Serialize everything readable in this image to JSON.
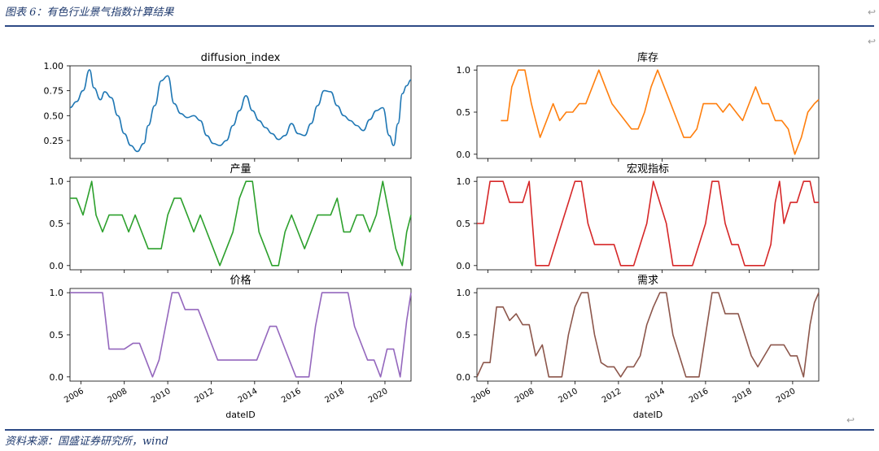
{
  "header": {
    "caption": "图表 6：有色行业景气指数计算结果"
  },
  "footer": {
    "source": "资料来源：国盛证券研究所，wind"
  },
  "paragraph_mark": "↩",
  "xaxis": {
    "label": "dateID",
    "ticks": [
      "2006",
      "2008",
      "2010",
      "2012",
      "2014",
      "2016",
      "2018",
      "2020"
    ]
  },
  "chart_data": [
    {
      "type": "line",
      "title": "diffusion_index",
      "color": "#1f77b4",
      "yticks": [
        "0.25",
        "0.50",
        "0.75",
        "1.00"
      ],
      "ylim": [
        0.07,
        1.0
      ],
      "x": [
        2005.5,
        2005.8,
        2006.1,
        2006.4,
        2006.6,
        2006.9,
        2007.1,
        2007.4,
        2007.7,
        2008.0,
        2008.3,
        2008.6,
        2008.9,
        2009.1,
        2009.4,
        2009.7,
        2010.0,
        2010.3,
        2010.6,
        2010.9,
        2011.2,
        2011.5,
        2011.8,
        2012.1,
        2012.4,
        2012.7,
        2013.0,
        2013.3,
        2013.6,
        2013.9,
        2014.2,
        2014.5,
        2014.8,
        2015.1,
        2015.4,
        2015.7,
        2016.0,
        2016.3,
        2016.6,
        2016.9,
        2017.2,
        2017.5,
        2017.8,
        2018.1,
        2018.4,
        2018.7,
        2019.0,
        2019.3,
        2019.6,
        2019.9,
        2020.2,
        2020.4,
        2020.6,
        2020.8,
        2021.0,
        2021.2
      ],
      "y": [
        0.58,
        0.64,
        0.75,
        0.96,
        0.78,
        0.66,
        0.74,
        0.68,
        0.5,
        0.32,
        0.2,
        0.14,
        0.22,
        0.4,
        0.6,
        0.85,
        0.9,
        0.62,
        0.52,
        0.48,
        0.5,
        0.45,
        0.3,
        0.22,
        0.2,
        0.25,
        0.4,
        0.55,
        0.7,
        0.55,
        0.45,
        0.38,
        0.32,
        0.26,
        0.3,
        0.42,
        0.32,
        0.3,
        0.42,
        0.6,
        0.75,
        0.74,
        0.6,
        0.5,
        0.45,
        0.4,
        0.35,
        0.46,
        0.55,
        0.58,
        0.3,
        0.2,
        0.42,
        0.72,
        0.8,
        0.86
      ]
    },
    {
      "type": "line",
      "title": "库存",
      "color": "#ff7f0e",
      "yticks": [
        "0.0",
        "0.5",
        "1.0"
      ],
      "ylim": [
        -0.05,
        1.05
      ],
      "x": [
        2006.6,
        2006.9,
        2007.1,
        2007.4,
        2007.7,
        2008.0,
        2008.2,
        2008.4,
        2008.7,
        2009.0,
        2009.3,
        2009.6,
        2009.9,
        2010.2,
        2010.5,
        2010.8,
        2011.1,
        2011.4,
        2011.7,
        2012.0,
        2012.3,
        2012.6,
        2012.9,
        2013.2,
        2013.5,
        2013.8,
        2014.1,
        2014.4,
        2014.7,
        2015.0,
        2015.3,
        2015.6,
        2015.9,
        2016.2,
        2016.5,
        2016.8,
        2017.1,
        2017.4,
        2017.7,
        2018.0,
        2018.3,
        2018.6,
        2018.9,
        2019.2,
        2019.5,
        2019.8,
        2020.1,
        2020.4,
        2020.7,
        2021.0,
        2021.2
      ],
      "y": [
        0.4,
        0.4,
        0.8,
        1.0,
        1.0,
        0.6,
        0.4,
        0.2,
        0.4,
        0.6,
        0.4,
        0.5,
        0.5,
        0.6,
        0.6,
        0.8,
        1.0,
        0.8,
        0.6,
        0.5,
        0.4,
        0.3,
        0.3,
        0.5,
        0.8,
        1.0,
        0.8,
        0.6,
        0.4,
        0.2,
        0.2,
        0.3,
        0.6,
        0.6,
        0.6,
        0.5,
        0.6,
        0.5,
        0.4,
        0.6,
        0.8,
        0.6,
        0.6,
        0.4,
        0.4,
        0.3,
        0.0,
        0.2,
        0.5,
        0.6,
        0.65
      ]
    },
    {
      "type": "line",
      "title": "产量",
      "color": "#2ca02c",
      "yticks": [
        "0.0",
        "0.5",
        "1.0"
      ],
      "ylim": [
        -0.05,
        1.05
      ],
      "x": [
        2005.5,
        2005.8,
        2006.1,
        2006.3,
        2006.5,
        2006.7,
        2007.0,
        2007.3,
        2007.6,
        2007.9,
        2008.2,
        2008.5,
        2008.8,
        2009.1,
        2009.4,
        2009.7,
        2010.0,
        2010.3,
        2010.6,
        2010.9,
        2011.2,
        2011.5,
        2011.8,
        2012.1,
        2012.4,
        2012.7,
        2013.0,
        2013.3,
        2013.6,
        2013.9,
        2014.2,
        2014.5,
        2014.8,
        2015.1,
        2015.4,
        2015.7,
        2016.0,
        2016.3,
        2016.6,
        2016.9,
        2017.2,
        2017.5,
        2017.8,
        2018.1,
        2018.4,
        2018.7,
        2019.0,
        2019.3,
        2019.6,
        2019.9,
        2020.2,
        2020.5,
        2020.8,
        2021.0,
        2021.2
      ],
      "y": [
        0.8,
        0.8,
        0.6,
        0.8,
        1.0,
        0.6,
        0.4,
        0.6,
        0.6,
        0.6,
        0.4,
        0.6,
        0.4,
        0.2,
        0.2,
        0.2,
        0.6,
        0.8,
        0.8,
        0.6,
        0.4,
        0.6,
        0.4,
        0.2,
        0.0,
        0.2,
        0.4,
        0.8,
        1.0,
        1.0,
        0.4,
        0.2,
        0.0,
        0.0,
        0.4,
        0.6,
        0.4,
        0.2,
        0.4,
        0.6,
        0.6,
        0.6,
        0.8,
        0.4,
        0.4,
        0.6,
        0.6,
        0.4,
        0.6,
        1.0,
        0.6,
        0.2,
        0.0,
        0.4,
        0.6
      ]
    },
    {
      "type": "line",
      "title": "宏观指标",
      "color": "#d62728",
      "yticks": [
        "0.0",
        "0.5",
        "1.0"
      ],
      "ylim": [
        -0.05,
        1.05
      ],
      "x": [
        2005.5,
        2005.8,
        2006.1,
        2006.4,
        2006.7,
        2007.0,
        2007.3,
        2007.6,
        2007.9,
        2008.2,
        2008.5,
        2008.8,
        2009.1,
        2009.4,
        2009.7,
        2010.0,
        2010.3,
        2010.6,
        2010.9,
        2011.2,
        2011.5,
        2011.8,
        2012.1,
        2012.4,
        2012.7,
        2013.0,
        2013.3,
        2013.6,
        2013.9,
        2014.2,
        2014.5,
        2014.8,
        2015.1,
        2015.4,
        2015.7,
        2016.0,
        2016.3,
        2016.6,
        2016.9,
        2017.2,
        2017.5,
        2017.8,
        2018.1,
        2018.4,
        2018.7,
        2019.0,
        2019.2,
        2019.4,
        2019.6,
        2019.9,
        2020.2,
        2020.5,
        2020.8,
        2021.0,
        2021.2
      ],
      "y": [
        0.5,
        0.5,
        1.0,
        1.0,
        1.0,
        0.75,
        0.75,
        0.75,
        1.0,
        0.0,
        0.0,
        0.0,
        0.25,
        0.5,
        0.75,
        1.0,
        1.0,
        0.5,
        0.25,
        0.25,
        0.25,
        0.25,
        0.0,
        0.0,
        0.0,
        0.25,
        0.5,
        1.0,
        0.75,
        0.5,
        0.0,
        0.0,
        0.0,
        0.0,
        0.25,
        0.5,
        1.0,
        1.0,
        0.5,
        0.25,
        0.25,
        0.0,
        0.0,
        0.0,
        0.0,
        0.25,
        0.75,
        1.0,
        0.5,
        0.75,
        0.75,
        1.0,
        1.0,
        0.75,
        0.75
      ]
    },
    {
      "type": "line",
      "title": "价格",
      "color": "#9467bd",
      "yticks": [
        "0.0",
        "0.5",
        "1.0"
      ],
      "ylim": [
        -0.05,
        1.05
      ],
      "x": [
        2005.5,
        2006.0,
        2006.5,
        2007.0,
        2007.3,
        2007.6,
        2008.0,
        2008.4,
        2008.7,
        2009.0,
        2009.3,
        2009.6,
        2009.9,
        2010.2,
        2010.5,
        2010.8,
        2011.1,
        2011.4,
        2011.7,
        2012.0,
        2012.3,
        2012.6,
        2012.9,
        2013.2,
        2013.5,
        2013.8,
        2014.1,
        2014.4,
        2014.7,
        2015.0,
        2015.3,
        2015.6,
        2015.9,
        2016.2,
        2016.5,
        2016.8,
        2017.1,
        2017.4,
        2017.7,
        2018.0,
        2018.3,
        2018.6,
        2018.9,
        2019.2,
        2019.5,
        2019.8,
        2020.1,
        2020.4,
        2020.7,
        2021.0,
        2021.2
      ],
      "y": [
        1.0,
        1.0,
        1.0,
        1.0,
        0.33,
        0.33,
        0.33,
        0.4,
        0.4,
        0.2,
        0.0,
        0.2,
        0.6,
        1.0,
        1.0,
        0.8,
        0.8,
        0.8,
        0.6,
        0.4,
        0.2,
        0.2,
        0.2,
        0.2,
        0.2,
        0.2,
        0.2,
        0.4,
        0.6,
        0.6,
        0.4,
        0.2,
        0.0,
        0.0,
        0.0,
        0.6,
        1.0,
        1.0,
        1.0,
        1.0,
        1.0,
        0.6,
        0.4,
        0.2,
        0.2,
        0.0,
        0.33,
        0.33,
        0.0,
        0.67,
        1.0
      ]
    },
    {
      "type": "line",
      "title": "需求",
      "color": "#8c564b",
      "yticks": [
        "0.0",
        "0.5",
        "1.0"
      ],
      "ylim": [
        -0.05,
        1.05
      ],
      "x": [
        2005.5,
        2005.8,
        2006.1,
        2006.4,
        2006.7,
        2007.0,
        2007.3,
        2007.6,
        2007.9,
        2008.2,
        2008.5,
        2008.8,
        2009.1,
        2009.4,
        2009.7,
        2010.0,
        2010.3,
        2010.6,
        2010.9,
        2011.2,
        2011.5,
        2011.8,
        2012.1,
        2012.4,
        2012.7,
        2013.0,
        2013.3,
        2013.6,
        2013.9,
        2014.2,
        2014.5,
        2014.8,
        2015.1,
        2015.4,
        2015.7,
        2016.0,
        2016.3,
        2016.6,
        2016.9,
        2017.2,
        2017.5,
        2017.8,
        2018.1,
        2018.4,
        2018.7,
        2019.0,
        2019.3,
        2019.6,
        2019.9,
        2020.2,
        2020.5,
        2020.8,
        2021.0,
        2021.2
      ],
      "y": [
        0.0,
        0.17,
        0.17,
        0.83,
        0.83,
        0.67,
        0.75,
        0.62,
        0.62,
        0.25,
        0.38,
        0.0,
        0.0,
        0.0,
        0.5,
        0.83,
        1.0,
        1.0,
        0.5,
        0.17,
        0.12,
        0.12,
        0.0,
        0.12,
        0.12,
        0.25,
        0.62,
        0.83,
        1.0,
        1.0,
        0.5,
        0.25,
        0.0,
        0.0,
        0.0,
        0.5,
        1.0,
        1.0,
        0.75,
        0.75,
        0.75,
        0.5,
        0.25,
        0.12,
        0.25,
        0.38,
        0.38,
        0.38,
        0.25,
        0.25,
        0.0,
        0.62,
        0.88,
        1.0
      ]
    }
  ]
}
